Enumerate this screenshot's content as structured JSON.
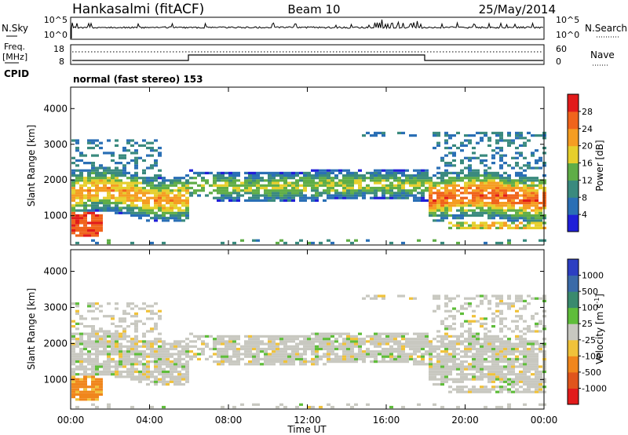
{
  "header": {
    "station": "Hankasalmi (fitACF)",
    "beam": "Beam 10",
    "date": "25/May/2014"
  },
  "top_panel": {
    "nsky_label": "N.Sky",
    "nsearch_label": "N.Search",
    "freq_label": "Freq.",
    "freq_unit": "[MHz]",
    "nave_label": "Nave",
    "cpid_label": "CPID",
    "cpid_value": "normal (fast stereo) 153",
    "nsky_ticks": [
      "10^5",
      "10^0"
    ],
    "nsearch_ticks": [
      "10^5",
      "10^0"
    ],
    "freq_ticks": [
      "18",
      "8"
    ],
    "nave_ticks": [
      "60",
      "0"
    ]
  },
  "chart_data": [
    {
      "type": "heatmap",
      "name": "power",
      "xlabel": "",
      "ylabel": "Slant Range [km]",
      "y_ticks": [
        1000,
        2000,
        3000,
        4000
      ],
      "ylim": [
        180,
        4600
      ],
      "xlim_hours": [
        0,
        24
      ],
      "colorbar": {
        "label": "Power [dB]",
        "ticks": [
          "4",
          "8",
          "12",
          "16",
          "20",
          "24",
          "28"
        ],
        "colors": [
          "#1f1fd8",
          "#2a6fb5",
          "#3a8a7e",
          "#5fad47",
          "#e6cf2c",
          "#f59d22",
          "#f0641c",
          "#e21b1b"
        ]
      }
    },
    {
      "type": "heatmap",
      "name": "velocity",
      "xlabel": "Time UT",
      "ylabel": "Slant Range [km]",
      "y_ticks": [
        1000,
        2000,
        3000,
        4000
      ],
      "ylim": [
        180,
        4600
      ],
      "x_ticks": [
        "00:00",
        "04:00",
        "08:00",
        "12:00",
        "16:00",
        "20:00",
        "00:00"
      ],
      "colorbar": {
        "label": "Velocity [m s^-1]",
        "ticks": [
          "1000",
          "500",
          "100",
          "25",
          "-25",
          "-100",
          "-500",
          "-1000"
        ],
        "colors": [
          "#2c3fc2",
          "#3a6aa8",
          "#3a8a6e",
          "#5fbd3a",
          "#c8c8c0",
          "#f0c23a",
          "#f0861c",
          "#e0551c",
          "#e21b1b"
        ]
      }
    }
  ]
}
